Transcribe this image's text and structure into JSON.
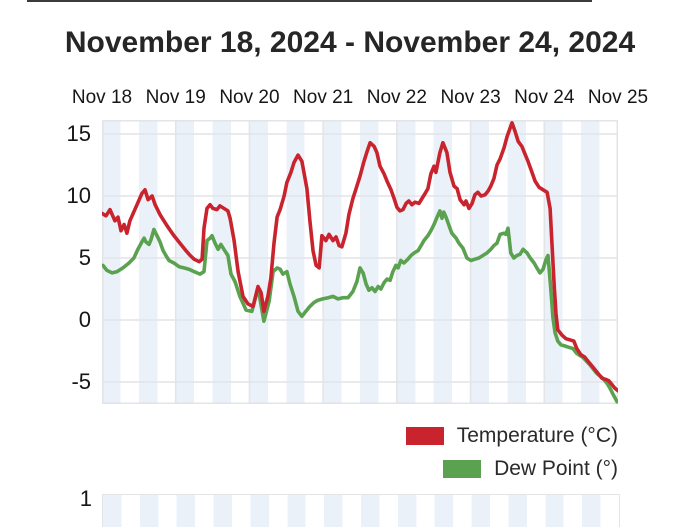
{
  "page": {
    "title": "November 18, 2024 - November 24, 2024"
  },
  "legend": {
    "temperature_label": "Temperature (°C)",
    "dew_point_label": "Dew Point (°)"
  },
  "second_chart": {
    "y_label": "1"
  },
  "colors": {
    "temperature": "#c9242e",
    "dew_point": "#5aa150",
    "band": "#ebf1f8",
    "gridline": "#e2e4e8",
    "text": "#161616"
  },
  "chart_data": {
    "type": "line",
    "title": "November 18, 2024 - November 24, 2024",
    "x_axis": {
      "position": "top",
      "tick_labels": [
        "Nov 18",
        "Nov 19",
        "Nov 20",
        "Nov 21",
        "Nov 22",
        "Nov 23",
        "Nov 24",
        "Nov 25"
      ],
      "unit": "hours since Nov 18 00:00",
      "range_hours": [
        0,
        168
      ],
      "gridlines": true
    },
    "y_axis": {
      "tick_labels": [
        "15",
        "10",
        "5",
        "0",
        "-5"
      ],
      "tick_values": [
        15,
        10,
        5,
        0,
        -5
      ],
      "range": [
        -6.8,
        16.1
      ],
      "gridlines": true
    },
    "background_bands": "alternating quarter-day light-blue stripes (00-06h and 12-18h shaded)",
    "legend_position": "bottom-right",
    "series": [
      {
        "name": "Temperature (°C)",
        "color": "#c9242e",
        "points": [
          [
            0,
            8.6
          ],
          [
            1.3,
            8.4
          ],
          [
            2.6,
            8.9
          ],
          [
            4.2,
            8.0
          ],
          [
            5.2,
            8.3
          ],
          [
            6.2,
            7.2
          ],
          [
            7.2,
            7.7
          ],
          [
            8.1,
            7.0
          ],
          [
            9.1,
            8.0
          ],
          [
            11.4,
            9.3
          ],
          [
            13,
            10.2
          ],
          [
            14,
            10.5
          ],
          [
            15,
            9.7
          ],
          [
            16.3,
            10.0
          ],
          [
            17.3,
            9.3
          ],
          [
            18.9,
            8.5
          ],
          [
            21.2,
            7.6
          ],
          [
            23.1,
            6.9
          ],
          [
            24.7,
            6.4
          ],
          [
            26,
            6.0
          ],
          [
            27.3,
            5.6
          ],
          [
            28.7,
            5.2
          ],
          [
            30,
            4.9
          ],
          [
            31.6,
            4.7
          ],
          [
            32.6,
            4.9
          ],
          [
            33.2,
            7.4
          ],
          [
            34.2,
            9.0
          ],
          [
            35.2,
            9.3
          ],
          [
            36.1,
            9.0
          ],
          [
            37.4,
            8.9
          ],
          [
            38.4,
            9.2
          ],
          [
            39.7,
            9.0
          ],
          [
            41,
            8.8
          ],
          [
            41.7,
            8.2
          ],
          [
            43,
            6.4
          ],
          [
            44.3,
            3.9
          ],
          [
            45.9,
            1.9
          ],
          [
            47.5,
            1.3
          ],
          [
            49.2,
            1.1
          ],
          [
            50.8,
            2.7
          ],
          [
            51.8,
            2.2
          ],
          [
            52.7,
            0.7
          ],
          [
            54,
            1.9
          ],
          [
            55,
            3.4
          ],
          [
            56,
            6.2
          ],
          [
            57,
            8.3
          ],
          [
            58,
            8.9
          ],
          [
            59.3,
            10.0
          ],
          [
            60.2,
            11.1
          ],
          [
            61.5,
            11.9
          ],
          [
            62.5,
            12.7
          ],
          [
            63.8,
            13.3
          ],
          [
            65.1,
            12.8
          ],
          [
            66.7,
            10.6
          ],
          [
            67.7,
            8.0
          ],
          [
            68.7,
            5.6
          ],
          [
            69.7,
            4.4
          ],
          [
            70.7,
            4.2
          ],
          [
            71.6,
            6.8
          ],
          [
            72.9,
            6.4
          ],
          [
            73.9,
            6.9
          ],
          [
            75.2,
            6.4
          ],
          [
            76.2,
            6.7
          ],
          [
            77.2,
            6.0
          ],
          [
            78.1,
            5.9
          ],
          [
            79.4,
            7.0
          ],
          [
            80.4,
            8.5
          ],
          [
            81.7,
            9.8
          ],
          [
            83,
            10.8
          ],
          [
            84,
            11.6
          ],
          [
            85.3,
            12.8
          ],
          [
            86.3,
            13.6
          ],
          [
            87.3,
            14.3
          ],
          [
            88.6,
            14.0
          ],
          [
            89.5,
            13.5
          ],
          [
            90.5,
            12.4
          ],
          [
            91.8,
            11.8
          ],
          [
            92.8,
            11.2
          ],
          [
            94.1,
            10.5
          ],
          [
            95.1,
            9.8
          ],
          [
            96,
            9.1
          ],
          [
            97,
            8.8
          ],
          [
            98,
            8.9
          ],
          [
            99,
            9.4
          ],
          [
            99.9,
            9.6
          ],
          [
            100.9,
            9.3
          ],
          [
            101.9,
            9.5
          ],
          [
            103.2,
            9.4
          ],
          [
            104.2,
            9.8
          ],
          [
            105.2,
            10.2
          ],
          [
            106.1,
            10.6
          ],
          [
            107.1,
            11.8
          ],
          [
            108.1,
            12.4
          ],
          [
            108.7,
            11.9
          ],
          [
            110,
            13.5
          ],
          [
            111,
            14.3
          ],
          [
            112.3,
            13.5
          ],
          [
            113.3,
            11.9
          ],
          [
            114.6,
            10.8
          ],
          [
            115.6,
            10.6
          ],
          [
            116.6,
            9.7
          ],
          [
            117.9,
            9.3
          ],
          [
            118.5,
            9.6
          ],
          [
            119.5,
            9.0
          ],
          [
            120.5,
            9.4
          ],
          [
            121.4,
            10.1
          ],
          [
            122.4,
            10.3
          ],
          [
            123.4,
            10.0
          ],
          [
            124.7,
            10.1
          ],
          [
            125.7,
            10.4
          ],
          [
            126.6,
            10.8
          ],
          [
            127.6,
            11.4
          ],
          [
            128.6,
            12.5
          ],
          [
            129.6,
            13.0
          ],
          [
            130.9,
            13.9
          ],
          [
            131.9,
            14.8
          ],
          [
            133.5,
            15.9
          ],
          [
            134.5,
            15.2
          ],
          [
            135.5,
            14.4
          ],
          [
            136.7,
            14.0
          ],
          [
            137.7,
            13.4
          ],
          [
            138.7,
            12.8
          ],
          [
            140,
            11.9
          ],
          [
            141,
            11.2
          ],
          [
            142.3,
            10.7
          ],
          [
            143.6,
            10.5
          ],
          [
            144.9,
            10.3
          ],
          [
            145.9,
            9.0
          ],
          [
            146.5,
            6.1
          ],
          [
            147.2,
            2.9
          ],
          [
            147.8,
            0.5
          ],
          [
            148.4,
            -0.8
          ],
          [
            149.7,
            -1.2
          ],
          [
            151,
            -1.5
          ],
          [
            152.3,
            -1.6
          ],
          [
            153.6,
            -1.7
          ],
          [
            154.6,
            -2.3
          ],
          [
            155.9,
            -2.8
          ],
          [
            157.2,
            -3.0
          ],
          [
            158.5,
            -3.4
          ],
          [
            159.5,
            -3.7
          ],
          [
            160.8,
            -4.1
          ],
          [
            161.8,
            -4.4
          ],
          [
            162.8,
            -4.7
          ],
          [
            164.1,
            -4.8
          ],
          [
            165,
            -4.9
          ],
          [
            166,
            -5.2
          ],
          [
            167,
            -5.5
          ],
          [
            168,
            -5.7
          ]
        ]
      },
      {
        "name": "Dew Point (°)",
        "color": "#5aa150",
        "points": [
          [
            0.3,
            4.4
          ],
          [
            1.6,
            4.0
          ],
          [
            3.3,
            3.8
          ],
          [
            4.9,
            3.9
          ],
          [
            6.8,
            4.2
          ],
          [
            8.8,
            4.6
          ],
          [
            10.4,
            5.0
          ],
          [
            11.7,
            5.7
          ],
          [
            13,
            6.3
          ],
          [
            13.7,
            6.6
          ],
          [
            14.3,
            6.3
          ],
          [
            15.3,
            6.1
          ],
          [
            16,
            6.5
          ],
          [
            16.9,
            7.3
          ],
          [
            17.9,
            6.8
          ],
          [
            18.9,
            6.3
          ],
          [
            19.9,
            5.6
          ],
          [
            20.8,
            5.2
          ],
          [
            21.8,
            4.8
          ],
          [
            23.4,
            4.6
          ],
          [
            25.1,
            4.3
          ],
          [
            26.7,
            4.2
          ],
          [
            28.3,
            4.1
          ],
          [
            30,
            3.9
          ],
          [
            31.9,
            3.7
          ],
          [
            33.2,
            3.9
          ],
          [
            34.2,
            6.4
          ],
          [
            35.2,
            6.6
          ],
          [
            35.8,
            6.8
          ],
          [
            36.8,
            6.2
          ],
          [
            37.8,
            5.7
          ],
          [
            38.7,
            6.1
          ],
          [
            39.7,
            5.7
          ],
          [
            41,
            5.2
          ],
          [
            42,
            3.7
          ],
          [
            43.3,
            3.1
          ],
          [
            44.9,
            1.9
          ],
          [
            46.9,
            0.8
          ],
          [
            48.8,
            0.7
          ],
          [
            50.8,
            2.6
          ],
          [
            52.7,
            -0.1
          ],
          [
            54.4,
            1.5
          ],
          [
            55.7,
            3.9
          ],
          [
            57,
            4.2
          ],
          [
            58,
            4.1
          ],
          [
            58.9,
            3.7
          ],
          [
            60.2,
            3.9
          ],
          [
            61.2,
            2.9
          ],
          [
            62.5,
            1.9
          ],
          [
            63.8,
            0.7
          ],
          [
            65.1,
            0.3
          ],
          [
            66.4,
            0.7
          ],
          [
            67.7,
            1.1
          ],
          [
            69,
            1.4
          ],
          [
            70.3,
            1.6
          ],
          [
            71.9,
            1.7
          ],
          [
            73.6,
            1.8
          ],
          [
            75.2,
            1.9
          ],
          [
            76.8,
            1.7
          ],
          [
            78.4,
            1.8
          ],
          [
            80.1,
            1.8
          ],
          [
            81.7,
            2.3
          ],
          [
            83,
            3.1
          ],
          [
            84,
            4.2
          ],
          [
            85,
            3.8
          ],
          [
            86,
            2.9
          ],
          [
            86.9,
            2.4
          ],
          [
            87.9,
            2.6
          ],
          [
            88.9,
            2.3
          ],
          [
            89.9,
            2.7
          ],
          [
            90.8,
            2.5
          ],
          [
            91.8,
            3.0
          ],
          [
            92.8,
            3.3
          ],
          [
            93.8,
            3.2
          ],
          [
            94.7,
            3.9
          ],
          [
            95.7,
            4.4
          ],
          [
            96.4,
            4.2
          ],
          [
            97.3,
            4.8
          ],
          [
            98.3,
            4.6
          ],
          [
            99.6,
            4.9
          ],
          [
            100.6,
            5.2
          ],
          [
            101.6,
            5.4
          ],
          [
            102.9,
            5.6
          ],
          [
            103.9,
            6.0
          ],
          [
            104.8,
            6.4
          ],
          [
            106.1,
            6.8
          ],
          [
            107.1,
            7.2
          ],
          [
            108.1,
            7.7
          ],
          [
            109.1,
            8.3
          ],
          [
            110,
            8.8
          ],
          [
            110.7,
            8.2
          ],
          [
            111.3,
            8.7
          ],
          [
            112,
            8.3
          ],
          [
            113,
            7.6
          ],
          [
            113.9,
            7.0
          ],
          [
            115.3,
            6.6
          ],
          [
            116.2,
            6.2
          ],
          [
            117.5,
            5.8
          ],
          [
            118.8,
            5.0
          ],
          [
            120.1,
            4.8
          ],
          [
            121.4,
            4.9
          ],
          [
            122.7,
            5.0
          ],
          [
            124,
            5.2
          ],
          [
            125.3,
            5.4
          ],
          [
            126.6,
            5.7
          ],
          [
            127.6,
            6.0
          ],
          [
            128.6,
            6.2
          ],
          [
            129.6,
            6.9
          ],
          [
            130.9,
            7.0
          ],
          [
            131.5,
            6.9
          ],
          [
            132.2,
            7.4
          ],
          [
            133.1,
            5.4
          ],
          [
            134.1,
            5.0
          ],
          [
            135.1,
            5.2
          ],
          [
            136.1,
            5.3
          ],
          [
            137.1,
            5.7
          ],
          [
            138.4,
            5.4
          ],
          [
            139.4,
            5.0
          ],
          [
            140.7,
            4.6
          ],
          [
            141.6,
            4.2
          ],
          [
            142.6,
            3.8
          ],
          [
            143.6,
            4.1
          ],
          [
            144.6,
            4.9
          ],
          [
            145.2,
            5.2
          ],
          [
            146.2,
            2.3
          ],
          [
            146.8,
            0.2
          ],
          [
            147.5,
            -1.0
          ],
          [
            148.4,
            -1.7
          ],
          [
            149.4,
            -2.0
          ],
          [
            150.7,
            -2.1
          ],
          [
            152,
            -2.2
          ],
          [
            153.3,
            -2.3
          ],
          [
            154.6,
            -2.7
          ],
          [
            156.5,
            -3.0
          ],
          [
            158.8,
            -3.6
          ],
          [
            161.1,
            -4.3
          ],
          [
            163.1,
            -4.7
          ],
          [
            164.4,
            -5.1
          ],
          [
            165.4,
            -5.5
          ],
          [
            166.4,
            -6.0
          ],
          [
            167.7,
            -6.6
          ]
        ]
      }
    ]
  }
}
